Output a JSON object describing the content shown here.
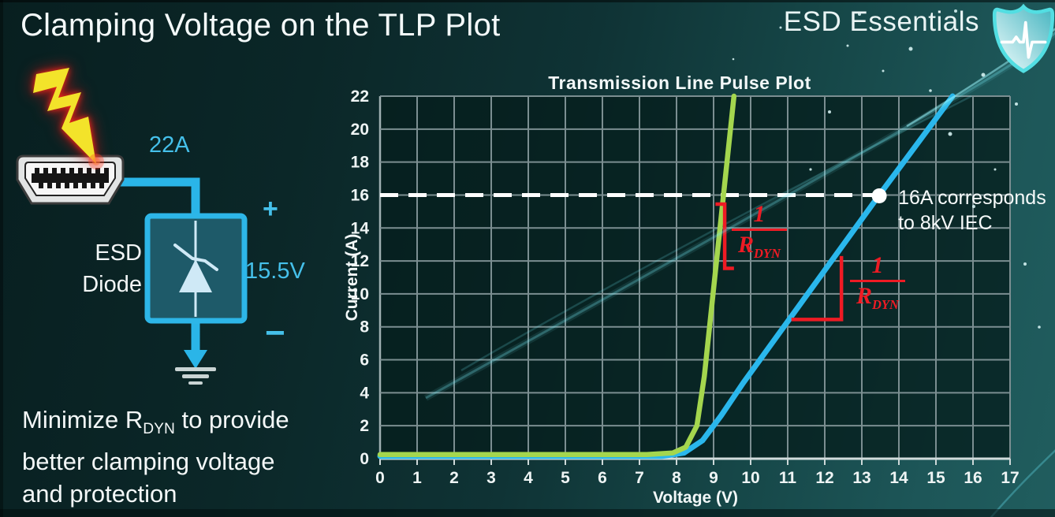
{
  "header": {
    "title": "Clamping Voltage on the TLP Plot",
    "brand": "ESD Essentials"
  },
  "diagram": {
    "surge_current": "22A",
    "device_line1": "ESD",
    "device_line2": "Diode",
    "plus": "+",
    "clamp_voltage": "15.5V",
    "minus": "−"
  },
  "note": {
    "l1a": "Minimize R",
    "l1sub": "DYN",
    "l1b": " to provide",
    "l2": "better clamping voltage",
    "l3": "and protection"
  },
  "colors": {
    "accent_cyan": "#45c0ea",
    "wire_blue": "#2ab5e8",
    "annotation_red": "#ee1b24",
    "green_curve": "#a4d64e",
    "blue_curve": "#2ab7ec"
  },
  "chart_data": {
    "type": "line",
    "title": "Transmission Line Pulse Plot",
    "xlabel": "Voltage (V)",
    "ylabel": "Current (A)",
    "xlim": [
      0,
      17
    ],
    "ylim": [
      0,
      22
    ],
    "x_ticks": [
      0,
      1,
      2,
      3,
      4,
      5,
      6,
      7,
      8,
      9,
      10,
      11,
      12,
      13,
      14,
      15,
      16,
      17
    ],
    "y_ticks": [
      0,
      2,
      4,
      6,
      8,
      10,
      12,
      14,
      16,
      18,
      20,
      22
    ],
    "grid": true,
    "legend": false,
    "series": [
      {
        "name": "high_rdyn_diode",
        "color": "#2ab7ec",
        "width": 7,
        "points": [
          [
            0,
            0.15
          ],
          [
            7.6,
            0.15
          ],
          [
            8.2,
            0.35
          ],
          [
            8.7,
            1.1
          ],
          [
            9.2,
            2.6
          ],
          [
            9.8,
            4.6
          ],
          [
            13.47,
            16
          ],
          [
            15.45,
            22
          ]
        ]
      },
      {
        "name": "low_rdyn_diode",
        "color": "#a4d64e",
        "width": 6.5,
        "points": [
          [
            0,
            0.25
          ],
          [
            7.2,
            0.25
          ],
          [
            7.9,
            0.35
          ],
          [
            8.25,
            0.7
          ],
          [
            8.55,
            2
          ],
          [
            8.75,
            5
          ],
          [
            9.55,
            22
          ]
        ]
      }
    ],
    "reference_line": {
      "i": 16,
      "v_start": 0,
      "v_end": 13.47,
      "style": "dashed",
      "color": "#ffffff"
    },
    "marker": {
      "v": 13.47,
      "i": 15.95,
      "label_line1": "16A corresponds",
      "label_line2": "to 8kV IEC"
    },
    "slope_markers": [
      {
        "points": [
          [
            9.05,
            15.45
          ],
          [
            9.3,
            15.45
          ],
          [
            9.3,
            11.55
          ],
          [
            9.55,
            11.55
          ]
        ]
      },
      {
        "points": [
          [
            11.1,
            8.45
          ],
          [
            12.45,
            8.45
          ],
          [
            12.45,
            12.3
          ]
        ]
      }
    ],
    "fractions": [
      {
        "num": "1",
        "den": "R",
        "den_sub": "DYN"
      },
      {
        "num": "1",
        "den": "R",
        "den_sub": "DYN"
      }
    ]
  }
}
